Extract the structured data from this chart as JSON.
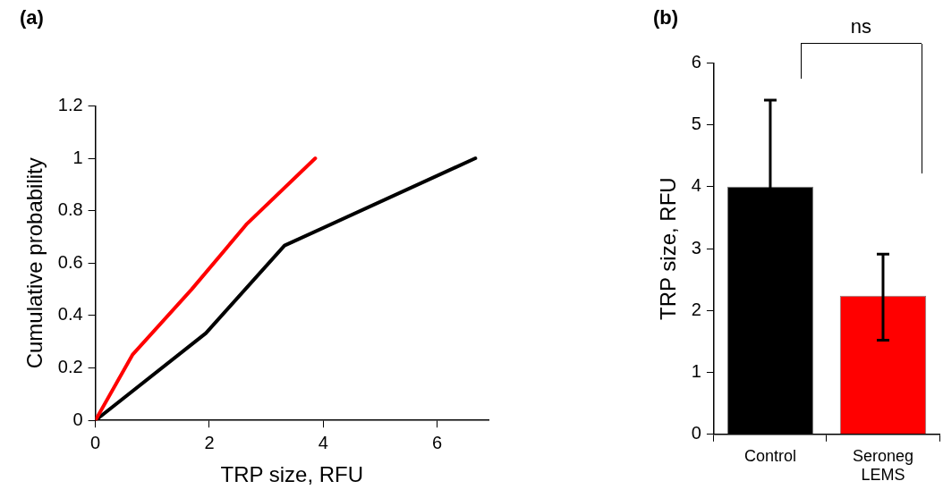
{
  "chart_data": [
    {
      "type": "line",
      "title": "(a)",
      "xlabel": "TRP size, RFU",
      "ylabel": "Cumulative probability",
      "xlim": [
        0,
        6.9
      ],
      "xticks": [
        0,
        2,
        4,
        6
      ],
      "ylim": [
        0,
        1.2
      ],
      "yticks": [
        0,
        0.2,
        0.4,
        0.6,
        0.8,
        1,
        1.2
      ],
      "grid": false,
      "legend": false,
      "marker": "none",
      "series": [
        {
          "color": "#ff0000",
          "x": [
            0,
            0.65,
            1.69,
            2.66,
            3.86
          ],
          "values": [
            0,
            0.25,
            0.5,
            0.75,
            1
          ]
        },
        {
          "color": "#000000",
          "x": [
            0,
            1.94,
            3.32,
            6.67
          ],
          "values": [
            0,
            0.333,
            0.667,
            1
          ]
        }
      ]
    },
    {
      "type": "bar",
      "title": "(b)",
      "ylabel": "TRP size, RFU",
      "categories": [
        "Control",
        "Seroneg LEMS"
      ],
      "values": [
        4.0,
        2.24
      ],
      "colors": [
        "#000000",
        "#ff0000"
      ],
      "errors": [
        1.4,
        [
          1.52,
          2.91
        ]
      ],
      "ylim": [
        0,
        6
      ],
      "yticks": [
        0,
        1,
        2,
        3,
        4,
        5,
        6
      ],
      "grid": false,
      "legend": false,
      "annotations": [
        "ns"
      ]
    }
  ]
}
